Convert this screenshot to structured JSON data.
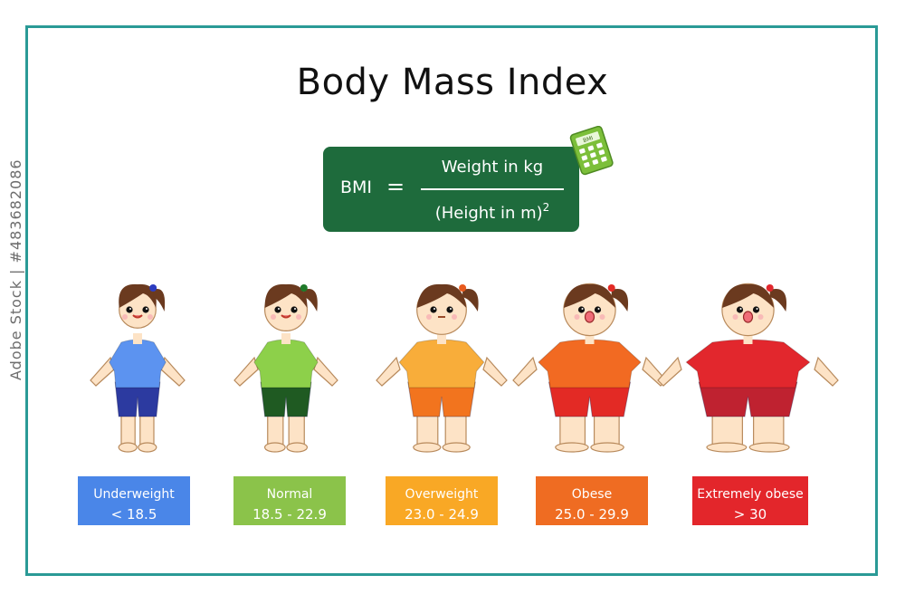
{
  "title": "Body Mass Index",
  "formula": {
    "lhs": "BMI",
    "equals": "=",
    "numerator": "Weight in kg",
    "denominator": "(Height in m)",
    "exponent": "2"
  },
  "calculator": {
    "label": "BMI",
    "icon": "calculator-icon"
  },
  "categories": [
    {
      "name": "Underweight",
      "range": "< 18.5",
      "color": "#4a86e8"
    },
    {
      "name": "Normal",
      "range": "18.5 - 22.9",
      "color": "#8bc34a"
    },
    {
      "name": "Overweight",
      "range": "23.0 - 24.9",
      "color": "#f9a825"
    },
    {
      "name": "Obese",
      "range": "25.0 - 29.9",
      "color": "#ef6c22"
    },
    {
      "name": "Extremely obese",
      "range": "> 30",
      "color": "#e3262b"
    }
  ],
  "figures": [
    {
      "shirt": "#5c93f0",
      "pants": "#2c3aa0",
      "tie": "#2d3cc0",
      "mouth": "smile"
    },
    {
      "shirt": "#8dd04a",
      "pants": "#1f5a22",
      "tie": "#1f7a2a",
      "mouth": "smile"
    },
    {
      "shirt": "#f8ad3a",
      "pants": "#f2741e",
      "tie": "#e85a1e",
      "mouth": "flat"
    },
    {
      "shirt": "#f26a22",
      "pants": "#e32a25",
      "tie": "#e32a25",
      "mouth": "open"
    },
    {
      "shirt": "#e2272d",
      "pants": "#bf2230",
      "tie": "#e2272d",
      "mouth": "open"
    }
  ],
  "watermark": "Adobe Stock | #483682086"
}
